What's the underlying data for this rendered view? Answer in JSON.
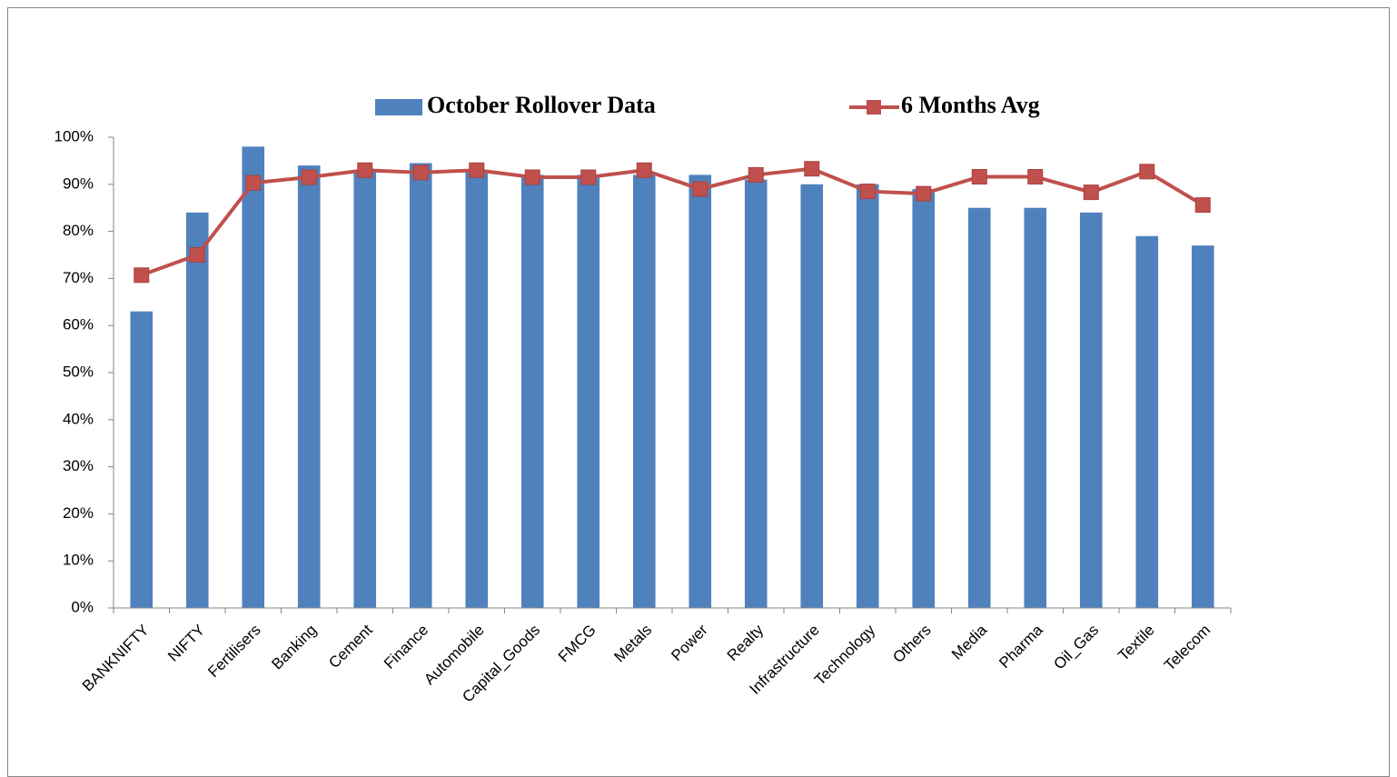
{
  "chart_data": {
    "type": "bar",
    "categories": [
      "BANKNIFTY",
      "NIFTY",
      "Fertilisers",
      "Banking",
      "Cement",
      "Finance",
      "Automobile",
      "Capital_Goods",
      "FMCG",
      "Metals",
      "Power",
      "Realty",
      "Infrastructure",
      "Technology",
      "Others",
      "Media",
      "Pharma",
      "Oil_Gas",
      "Textile",
      "Telecom"
    ],
    "series": [
      {
        "name": "October Rollover Data",
        "type": "bar",
        "color": "#4f81bd",
        "values": [
          63,
          84,
          98,
          94,
          93,
          94.5,
          93,
          92,
          92,
          92,
          92,
          91,
          90,
          90,
          89,
          85,
          85,
          84,
          79,
          77
        ]
      },
      {
        "name": "6 Months Avg",
        "type": "line",
        "color": "#c0504d",
        "values": [
          70.7,
          75,
          90.3,
          91.5,
          93,
          92.5,
          93,
          91.5,
          91.5,
          93,
          89,
          92,
          93.3,
          88.5,
          88,
          91.6,
          91.6,
          88.3,
          92.7,
          85.6
        ]
      }
    ],
    "ylim": [
      0,
      100
    ],
    "yticks": [
      {
        "value": 0,
        "label": "0%"
      },
      {
        "value": 10,
        "label": "10%"
      },
      {
        "value": 20,
        "label": "20%"
      },
      {
        "value": 30,
        "label": "30%"
      },
      {
        "value": 40,
        "label": "40%"
      },
      {
        "value": 50,
        "label": "50%"
      },
      {
        "value": 60,
        "label": "60%"
      },
      {
        "value": 70,
        "label": "70%"
      },
      {
        "value": 80,
        "label": "80%"
      },
      {
        "value": 90,
        "label": "90%"
      },
      {
        "value": 100,
        "label": "100%"
      }
    ],
    "grid": false,
    "legend": "top"
  }
}
